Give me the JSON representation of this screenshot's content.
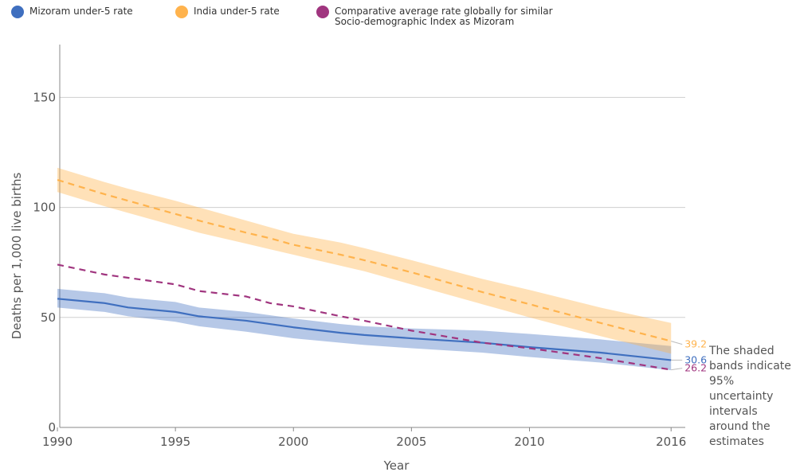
{
  "legend": [
    {
      "label": "Mizoram under-5 rate",
      "color": "#3f6fbf"
    },
    {
      "label": "India under-5 rate",
      "color": "#ffb34d"
    },
    {
      "label": "Comparative average rate globally for similar\nSocio-demographic Index as Mizoram",
      "color": "#a0357f"
    }
  ],
  "note": "The shaded bands indicate 95% uncertainty intervals around the estimates",
  "chart_data": {
    "type": "line",
    "xlabel": "Year",
    "ylabel": "Deaths per 1,000 live births",
    "xlim": [
      1990,
      2016
    ],
    "ylim": [
      0,
      150
    ],
    "x_ticks": [
      1990,
      1995,
      2000,
      2005,
      2010,
      2016
    ],
    "y_ticks": [
      0,
      50,
      100,
      150
    ],
    "grid": "horizontal",
    "legend_position": "top-left",
    "x": [
      1990,
      1992,
      1993,
      1995,
      1996,
      1998,
      1999,
      2000,
      2002,
      2003,
      2005,
      2008,
      2010,
      2013,
      2016
    ],
    "series": [
      {
        "name": "Mizoram under-5 rate",
        "color": "#3f6fbf",
        "line_style": "solid",
        "values": [
          58.5,
          56.5,
          54.5,
          52.5,
          50.5,
          48.5,
          47,
          45.5,
          43,
          42,
          40.5,
          38.5,
          36.5,
          34,
          30.6
        ],
        "lower": [
          54.5,
          52.5,
          50.5,
          48,
          46,
          43.5,
          42,
          40.5,
          38.5,
          37.5,
          36,
          34,
          32,
          29.5,
          26
        ],
        "upper": [
          63,
          61,
          59,
          57,
          54.5,
          52.5,
          51,
          49.5,
          47,
          46,
          45,
          44,
          42.5,
          40,
          37
        ]
      },
      {
        "name": "India under-5 rate",
        "color": "#ffb34d",
        "line_style": "dashed",
        "values": [
          112.5,
          106,
          103,
          97,
          94,
          88.5,
          86,
          83,
          78.5,
          76,
          70.5,
          61.5,
          56,
          47.5,
          39.2
        ],
        "lower": [
          107,
          100.5,
          97.5,
          91.5,
          88.5,
          83.5,
          81,
          78.5,
          73.5,
          71,
          65,
          56,
          50,
          41.5,
          33.5
        ],
        "upper": [
          118,
          111.5,
          108.5,
          103,
          100,
          94,
          91,
          88,
          84,
          81.5,
          76,
          67.5,
          62.5,
          54.5,
          47.5
        ]
      },
      {
        "name": "Comparative average rate globally for similar Socio-demographic Index as Mizoram",
        "color": "#a0357f",
        "line_style": "dashed",
        "values": [
          74,
          69.5,
          68,
          65,
          62,
          59.5,
          56.5,
          55,
          50.5,
          48.5,
          44,
          38.5,
          36,
          31.5,
          26.2
        ]
      }
    ],
    "end_labels": [
      {
        "series": "India under-5 rate",
        "text": "39.2"
      },
      {
        "series": "Mizoram under-5 rate",
        "text": "30.6"
      },
      {
        "series": "Comparative average rate globally for similar Socio-demographic Index as Mizoram",
        "text": "26.2"
      }
    ]
  }
}
